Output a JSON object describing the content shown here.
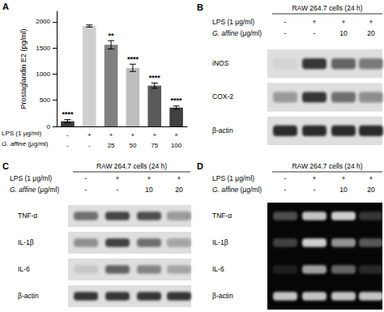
{
  "chart_data": {
    "type": "bar",
    "panel": "A",
    "y_label": "Prostaglandin E2 (pg/ml)",
    "x_rows": [
      {
        "label": "LPS (1 μg/ml)",
        "values": [
          "-",
          "+",
          "+",
          "+",
          "+",
          "+"
        ]
      },
      {
        "label": "G. affine (μg/ml)",
        "values": [
          "-",
          "-",
          "25",
          "50",
          "75",
          "100"
        ]
      }
    ],
    "values": [
      100,
      1920,
      1560,
      1120,
      780,
      360
    ],
    "errors": [
      30,
      20,
      80,
      70,
      50,
      30
    ],
    "annotations": [
      "****",
      null,
      "**",
      "****",
      "****",
      "****"
    ],
    "colors": [
      "#3a3a3a",
      "#cfcfcf",
      "#808080",
      "#bdbdbd",
      "#5a5a5a",
      "#404040"
    ],
    "ylim": [
      0,
      2200
    ],
    "yticks": [
      0,
      500,
      1000,
      1500,
      2000
    ],
    "grid": false
  },
  "panels": [
    {
      "label": "B",
      "type": "western_blot",
      "header": "RAW 264.7 cells (24 h)",
      "rows": [
        {
          "label": "LPS (1 μg/ml)",
          "values": [
            "-",
            "+",
            "+",
            "+"
          ]
        },
        {
          "label": "G. affine (μg/ml)",
          "values": [
            "-",
            "-",
            "10",
            "20"
          ]
        }
      ],
      "bands": [
        {
          "name": "iNOS",
          "intensity": [
            0.05,
            0.85,
            0.6,
            0.5
          ]
        },
        {
          "name": "COX-2",
          "intensity": [
            0.35,
            0.85,
            0.55,
            0.4
          ]
        },
        {
          "name": "β-actin",
          "intensity": [
            0.9,
            0.9,
            0.9,
            0.9
          ]
        }
      ]
    },
    {
      "label": "C",
      "type": "western_blot",
      "header": "RAW 264.7 cells (24 h)",
      "rows": [
        {
          "label": "LPS (1 μg/ml)",
          "values": [
            "-",
            "+",
            "+",
            "+"
          ]
        },
        {
          "label": "G. affine (μg/ml)",
          "values": [
            "-",
            "-",
            "10",
            "20"
          ]
        }
      ],
      "bands": [
        {
          "name": "TNF-α",
          "intensity": [
            0.55,
            0.75,
            0.7,
            0.35
          ]
        },
        {
          "name": "IL-1β",
          "intensity": [
            0.4,
            0.8,
            0.55,
            0.3
          ]
        },
        {
          "name": "IL-6",
          "intensity": [
            0.1,
            0.6,
            0.45,
            0.25
          ]
        },
        {
          "name": "β-actin",
          "intensity": [
            0.85,
            0.85,
            0.85,
            0.85
          ]
        }
      ]
    },
    {
      "label": "D",
      "type": "gel",
      "header": "RAW 264.7 cells (24 h)",
      "rows": [
        {
          "label": "LPS (1 μg/ml)",
          "values": [
            "-",
            "+",
            "+",
            "+"
          ]
        },
        {
          "label": "G. affine (μg/ml)",
          "values": [
            "-",
            "-",
            "10",
            "20"
          ]
        }
      ],
      "bands": [
        {
          "name": "TNF-α",
          "intensity": [
            0.3,
            0.8,
            0.85,
            0.2
          ]
        },
        {
          "name": "IL-1β",
          "intensity": [
            0.25,
            0.85,
            0.6,
            0.35
          ]
        },
        {
          "name": "IL-6",
          "intensity": [
            0.1,
            0.65,
            0.4,
            0.15
          ]
        },
        {
          "name": "β-actin",
          "intensity": [
            0.8,
            0.8,
            0.8,
            0.8
          ]
        }
      ]
    }
  ]
}
